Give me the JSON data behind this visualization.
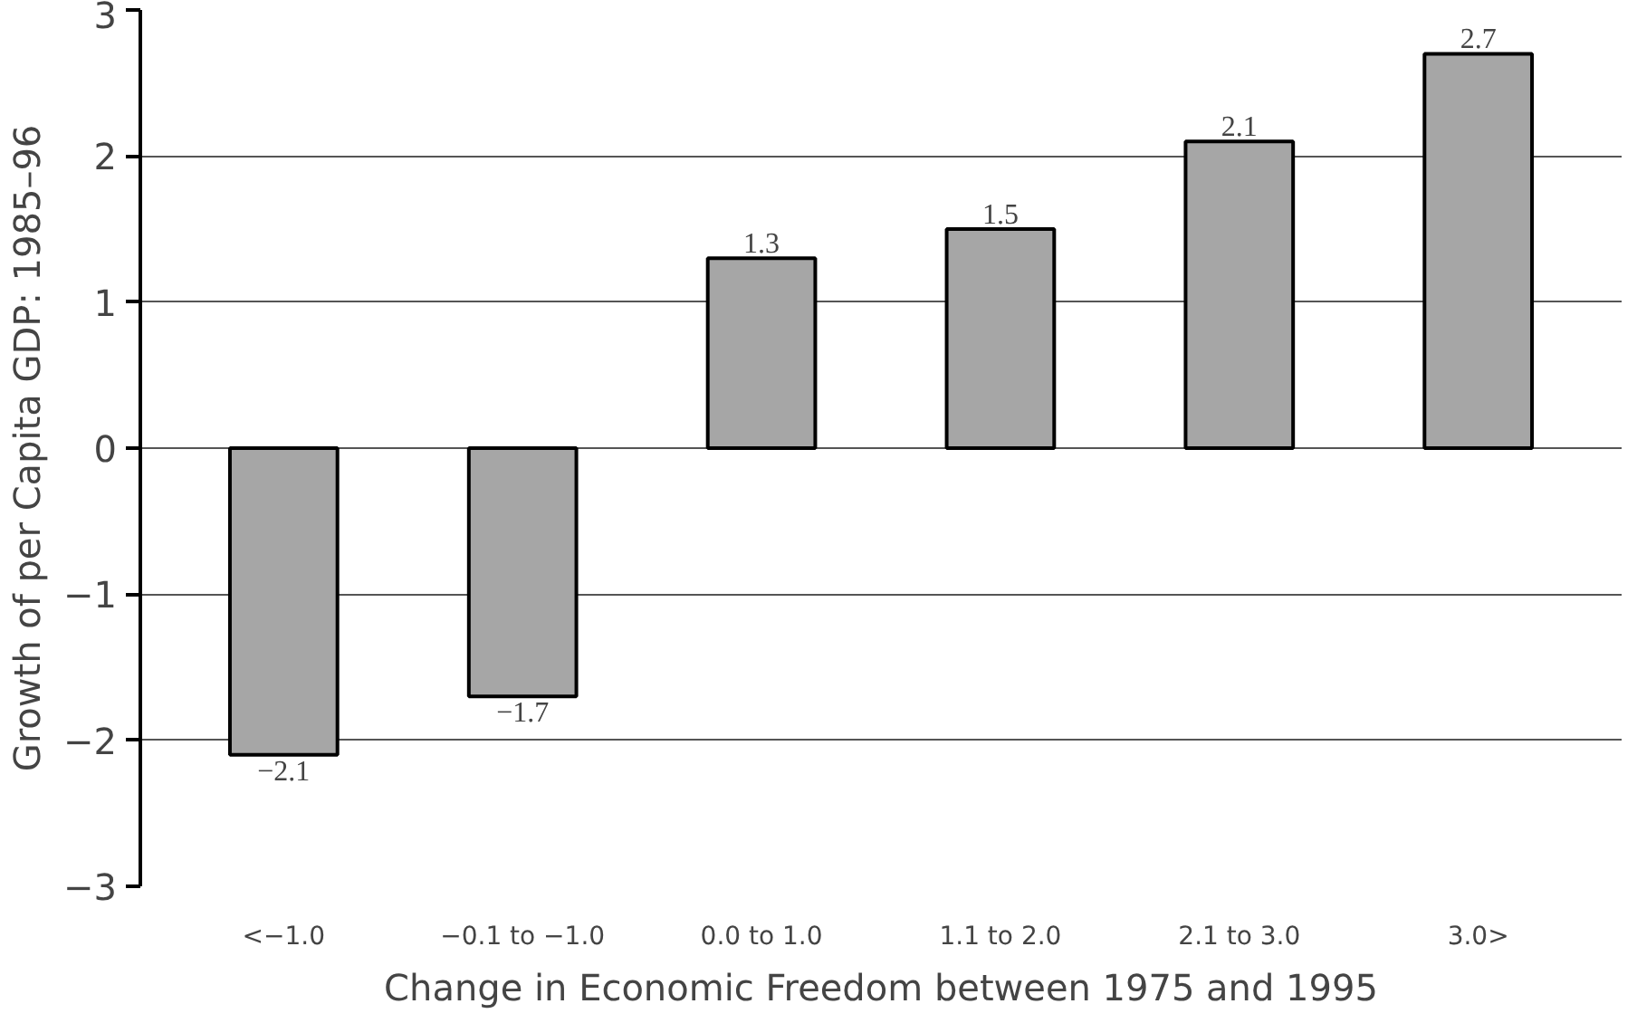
{
  "chart_data": {
    "type": "bar",
    "xlabel": "Change in Economic Freedom between 1975 and 1995",
    "ylabel": "Growth of per Capita GDP: 1985–96",
    "categories": [
      "<−1.0",
      "−0.1 to −1.0",
      "0.0 to 1.0",
      "1.1 to 2.0",
      "2.1 to 3.0",
      "3.0>"
    ],
    "values": [
      -2.1,
      -1.7,
      1.3,
      1.5,
      2.1,
      2.7
    ],
    "value_labels": [
      "−2.1",
      "−1.7",
      "1.3",
      "1.5",
      "2.1",
      "2.7"
    ],
    "color": "#a6a6a6",
    "ylim": [
      -3,
      3
    ],
    "yticks": [
      {
        "value": -3,
        "label": "−3"
      },
      {
        "value": -2,
        "label": "−2"
      },
      {
        "value": -1,
        "label": "−1"
      },
      0,
      1,
      2,
      3
    ],
    "grid": "y"
  }
}
